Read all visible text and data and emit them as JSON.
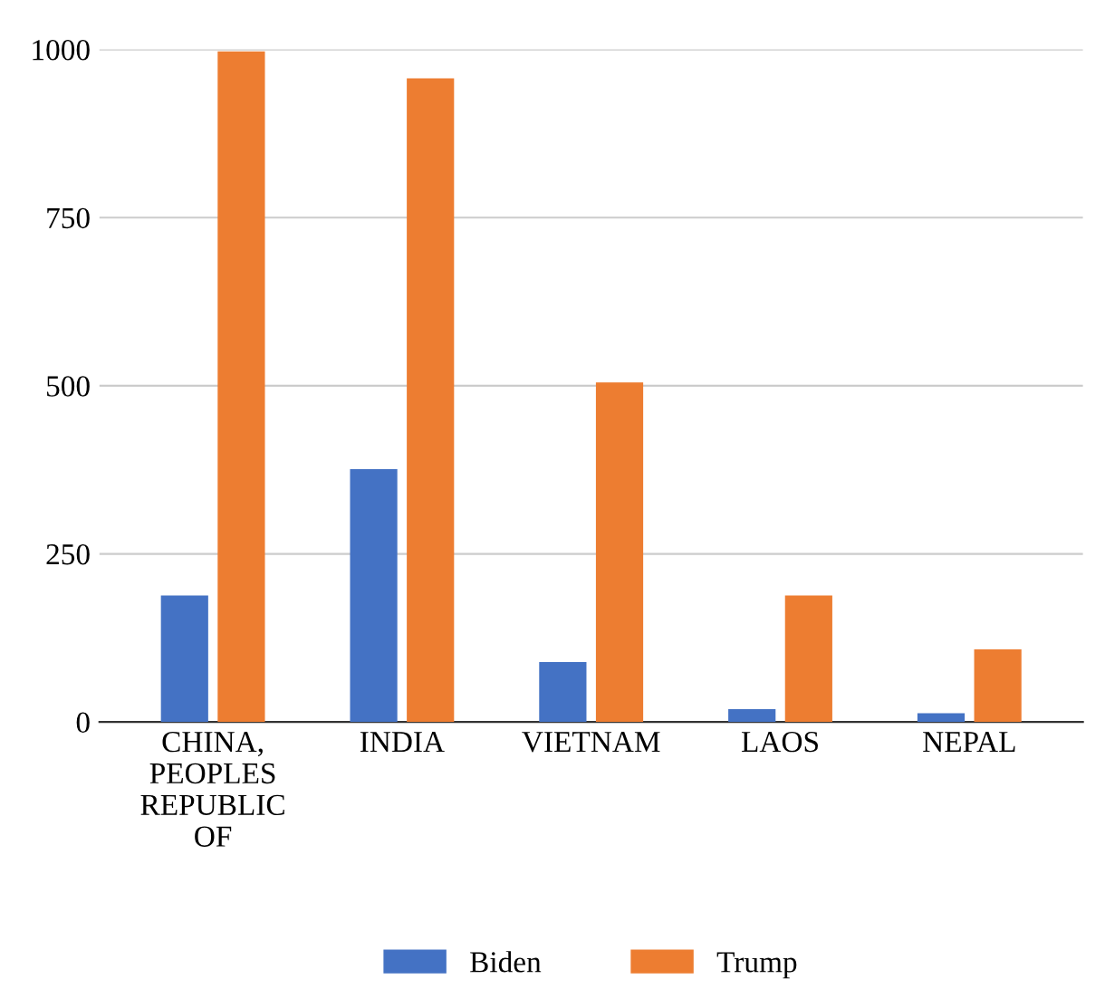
{
  "chart_data": {
    "type": "bar",
    "categories": [
      "CHINA,\nPEOPLES\nREPUBLIC\nOF",
      "INDIA",
      "VIETNAM",
      "LAOS",
      "NEPAL"
    ],
    "series": [
      {
        "name": "Biden",
        "color": "#4472c4",
        "values": [
          188,
          376,
          89,
          19,
          13
        ]
      },
      {
        "name": "Trump",
        "color": "#ed7d31",
        "values": [
          997,
          957,
          505,
          188,
          108
        ]
      }
    ],
    "ylim": [
      0,
      1000
    ],
    "yticks": [
      0,
      250,
      500,
      750,
      1000
    ],
    "grid": "y",
    "legend": "bottom"
  }
}
